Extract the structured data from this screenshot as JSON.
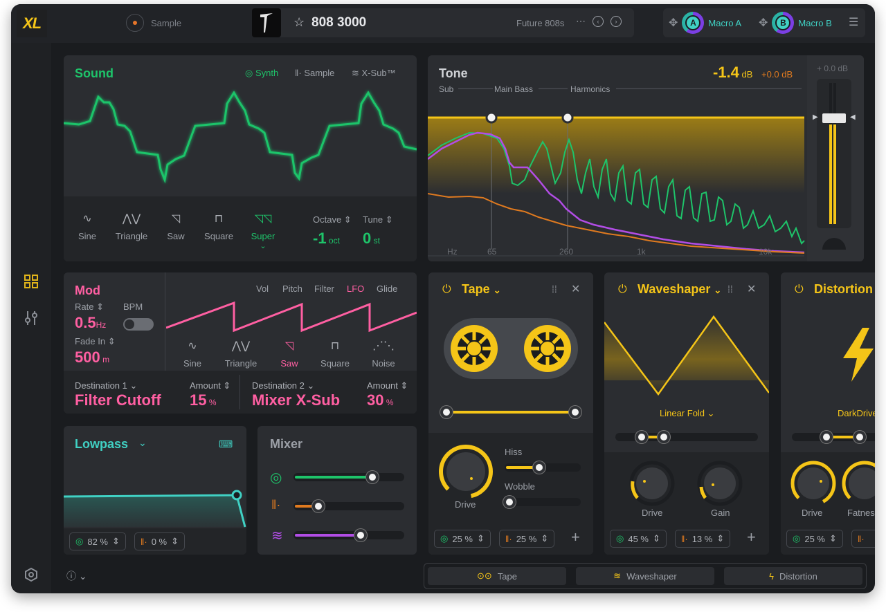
{
  "app": {
    "logo": "XL"
  },
  "topbar": {
    "sample_label": "Sample",
    "preset_name": "808 3000",
    "preset_bank": "Future 808s",
    "more": "⋯",
    "macro_a_label": "Macro A",
    "macro_a_letter": "A",
    "macro_b_label": "Macro B",
    "macro_b_letter": "B"
  },
  "sound": {
    "title": "Sound",
    "tabs": [
      "Synth",
      "Sample",
      "X-Sub™"
    ],
    "waves": [
      "Sine",
      "Triangle",
      "Saw",
      "Square",
      "Super"
    ],
    "active_wave": "Super",
    "octave_label": "Octave",
    "octave_value": "-1",
    "octave_unit": "oct",
    "tune_label": "Tune",
    "tune_value": "0",
    "tune_unit": "st"
  },
  "tone": {
    "title": "Tone",
    "level": "-1.4",
    "level_unit": "dB",
    "offset": "+0.0 dB",
    "bands": [
      "Sub",
      "Main Bass",
      "Harmonics"
    ],
    "freq_labels": [
      "Hz",
      "65",
      "260",
      "1k",
      "10k"
    ],
    "meter_label": "+ 0.0 dB"
  },
  "mod": {
    "title": "Mod",
    "rate_label": "Rate",
    "bpm_label": "BPM",
    "rate_value": "0.5",
    "rate_unit": "Hz",
    "fade_label": "Fade In",
    "fade_value": "500",
    "fade_unit": "m",
    "targets": [
      "Vol",
      "Pitch",
      "Filter",
      "LFO",
      "Glide"
    ],
    "active_target": "LFO",
    "waves": [
      "Sine",
      "Triangle",
      "Saw",
      "Square",
      "Noise"
    ],
    "active_wave": "Saw",
    "dest1_label": "Destination 1",
    "dest1_value": "Filter Cutoff",
    "amount1_label": "Amount",
    "amount1_value": "15",
    "dest2_label": "Destination 2",
    "dest2_value": "Mixer X-Sub",
    "amount2_label": "Amount",
    "amount2_value": "30",
    "percent": "%"
  },
  "filter": {
    "title": "Lowpass",
    "amount_a": "82 %",
    "amount_b": "0 %",
    "level": 0.74
  },
  "mixer": {
    "title": "Mixer",
    "synth_level": 0.72,
    "sample_level": 0.22,
    "xsub_level": 0.61
  },
  "tape": {
    "title": "Tape",
    "hiss_label": "Hiss",
    "hiss_level": 0.45,
    "wobble_label": "Wobble",
    "wobble_level": 0.05,
    "drive_label": "Drive",
    "step_a": "25 %",
    "step_b": "25 %"
  },
  "waveshaper": {
    "title": "Waveshaper",
    "mode": "Linear Fold",
    "drive_label": "Drive",
    "gain_label": "Gain",
    "step_a": "45 %",
    "step_b": "13 %"
  },
  "distortion": {
    "title": "Distortion",
    "mode": "DarkDrive",
    "drive_label": "Drive",
    "fatness_label": "Fatness",
    "step_a": "25 %"
  },
  "fx_tabs": [
    "Tape",
    "Waveshaper",
    "Distortion"
  ],
  "colors": {
    "accent": "#f5c518",
    "green": "#1ec46a",
    "pink": "#ff5fa2",
    "teal": "#40d1c4",
    "purple": "#b24de6",
    "orange": "#e07a1f"
  }
}
